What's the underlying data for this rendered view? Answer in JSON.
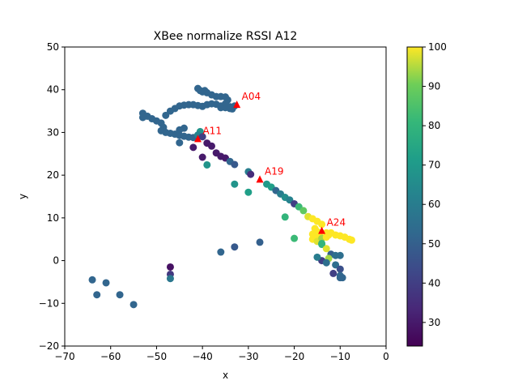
{
  "chart_data": {
    "type": "scatter",
    "title": "XBee normalize RSSI A12",
    "xlabel": "x",
    "ylabel": "y",
    "xlim": [
      -70,
      0
    ],
    "ylim": [
      -20,
      50
    ],
    "xticks": [
      -70,
      -60,
      -50,
      -40,
      -30,
      -20,
      -10,
      0
    ],
    "yticks": [
      -20,
      -10,
      0,
      10,
      20,
      30,
      40,
      50
    ],
    "grid": false,
    "colormap": "viridis",
    "colorbar": {
      "min": 24,
      "max": 100,
      "ticks": [
        30,
        40,
        50,
        60,
        70,
        80,
        90,
        100
      ]
    },
    "anchors": [
      {
        "label": "A04",
        "x": -32.5,
        "y": 36.5,
        "color": "#ff0000"
      },
      {
        "label": "A11",
        "x": -41,
        "y": 28.5,
        "color": "#ff0000"
      },
      {
        "label": "A19",
        "x": -27.5,
        "y": 19,
        "color": "#ff0000"
      },
      {
        "label": "A24",
        "x": -14,
        "y": 7,
        "color": "#ff0000"
      }
    ],
    "points": [
      [
        -53,
        34.5,
        52
      ],
      [
        -52,
        33.8,
        52
      ],
      [
        -51,
        33.2,
        52
      ],
      [
        -50,
        32.7,
        52
      ],
      [
        -49,
        32.2,
        52
      ],
      [
        -48.5,
        31.2,
        52
      ],
      [
        -49,
        30.4,
        52
      ],
      [
        -48,
        30,
        52
      ],
      [
        -47,
        29.8,
        52
      ],
      [
        -46,
        29.6,
        52
      ],
      [
        -45,
        29.3,
        52
      ],
      [
        -44,
        29.1,
        52
      ],
      [
        -43,
        28.9,
        52
      ],
      [
        -42,
        28.8,
        52
      ],
      [
        -44,
        31,
        52
      ],
      [
        -45,
        30.6,
        52
      ],
      [
        -53,
        33.5,
        52
      ],
      [
        -48,
        34,
        52
      ],
      [
        -47,
        35,
        52
      ],
      [
        -46,
        35.6,
        52
      ],
      [
        -45,
        36.2,
        52
      ],
      [
        -44,
        36.4,
        52
      ],
      [
        -43,
        36.5,
        52
      ],
      [
        -42,
        36.5,
        52
      ],
      [
        -41,
        36.3,
        52
      ],
      [
        -40,
        36.1,
        52
      ],
      [
        -39,
        36.5,
        52
      ],
      [
        -38,
        36.7,
        52
      ],
      [
        -37,
        36.6,
        52
      ],
      [
        -36,
        36.2,
        52
      ],
      [
        -35,
        35.8,
        52
      ],
      [
        -34,
        35.6,
        52
      ],
      [
        -33,
        36.2,
        52
      ],
      [
        -41,
        40.3,
        52
      ],
      [
        -40.5,
        39.8,
        52
      ],
      [
        -40,
        39.5,
        52
      ],
      [
        -39,
        39.3,
        52
      ],
      [
        -38,
        38.8,
        52
      ],
      [
        -37,
        38.4,
        52
      ],
      [
        -36,
        38.4,
        52
      ],
      [
        -35,
        38.3,
        52
      ],
      [
        -34.5,
        37.6,
        52
      ],
      [
        -35,
        36.7,
        52
      ],
      [
        -34,
        36,
        52
      ],
      [
        -33.5,
        35.5,
        52
      ],
      [
        -36,
        35.8,
        52
      ],
      [
        -39.5,
        39.8,
        52
      ],
      [
        -45,
        27.6,
        52
      ],
      [
        -40.5,
        30.2,
        68
      ],
      [
        -41,
        29.4,
        62
      ],
      [
        -40,
        29,
        40
      ],
      [
        -39,
        27.5,
        30
      ],
      [
        -38,
        26.8,
        30
      ],
      [
        -42,
        26.5,
        30
      ],
      [
        -37,
        25.2,
        30
      ],
      [
        -36,
        24.4,
        30
      ],
      [
        -35,
        24,
        30
      ],
      [
        -40,
        24.2,
        30
      ],
      [
        -34,
        23.2,
        52
      ],
      [
        -33,
        22.5,
        48
      ],
      [
        -39,
        22.4,
        68
      ],
      [
        -30,
        20.8,
        60
      ],
      [
        -29.5,
        20.2,
        35
      ],
      [
        -33,
        17.9,
        68
      ],
      [
        -30,
        16,
        72
      ],
      [
        -26,
        17.9,
        70
      ],
      [
        -25,
        17.2,
        72
      ],
      [
        -24,
        16.4,
        52
      ],
      [
        -23,
        15.6,
        60
      ],
      [
        -22,
        14.8,
        66
      ],
      [
        -21,
        14.2,
        62
      ],
      [
        -20,
        13.3,
        40
      ],
      [
        -19,
        12.6,
        82
      ],
      [
        -18,
        11.7,
        88
      ],
      [
        -17,
        10.3,
        98
      ],
      [
        -16,
        9.8,
        100
      ],
      [
        -15,
        9.2,
        100
      ],
      [
        -14,
        8.5,
        100
      ],
      [
        -15.5,
        7.5,
        100
      ],
      [
        -15,
        6.8,
        100
      ],
      [
        -14.5,
        6,
        100
      ],
      [
        -15,
        5,
        100
      ],
      [
        -16,
        5,
        100
      ],
      [
        -16,
        6.2,
        100
      ],
      [
        -15,
        4.5,
        98
      ],
      [
        -14,
        5.2,
        94
      ],
      [
        -13,
        6.5,
        100
      ],
      [
        -12,
        6.5,
        100
      ],
      [
        -11,
        6,
        100
      ],
      [
        -10,
        5.8,
        100
      ],
      [
        -9,
        5.5,
        100
      ],
      [
        -8,
        5,
        100
      ],
      [
        -7.5,
        4.8,
        100
      ],
      [
        -13,
        5.5,
        100
      ],
      [
        -12.5,
        6,
        100
      ],
      [
        -14,
        3.8,
        78
      ],
      [
        -13,
        2.8,
        98
      ],
      [
        -12,
        1.5,
        50
      ],
      [
        -11,
        1.2,
        55
      ],
      [
        -10,
        1.2,
        55
      ],
      [
        -12.5,
        0.5,
        94
      ],
      [
        -14,
        0,
        40
      ],
      [
        -13,
        -0.5,
        55
      ],
      [
        -11,
        -1,
        55
      ],
      [
        -10,
        -2,
        45
      ],
      [
        -11.5,
        -3,
        40
      ],
      [
        -10,
        -3.5,
        52
      ],
      [
        -10,
        -4,
        52
      ],
      [
        -9.5,
        -4,
        52
      ],
      [
        -14,
        4,
        80
      ],
      [
        -15,
        0.8,
        60
      ],
      [
        -15,
        6.5,
        100
      ],
      [
        -22,
        10.2,
        80
      ],
      [
        -20,
        5.2,
        82
      ],
      [
        -36,
        2,
        52
      ],
      [
        -33,
        3.2,
        48
      ],
      [
        -27.5,
        4.3,
        50
      ],
      [
        -47,
        -1.5,
        28
      ],
      [
        -47,
        -3.2,
        38
      ],
      [
        -47,
        -4.2,
        58
      ],
      [
        -64,
        -4.5,
        52
      ],
      [
        -61,
        -5.2,
        52
      ],
      [
        -58,
        -8,
        52
      ],
      [
        -55,
        -10.3,
        52
      ],
      [
        -63,
        -8,
        52
      ]
    ]
  }
}
